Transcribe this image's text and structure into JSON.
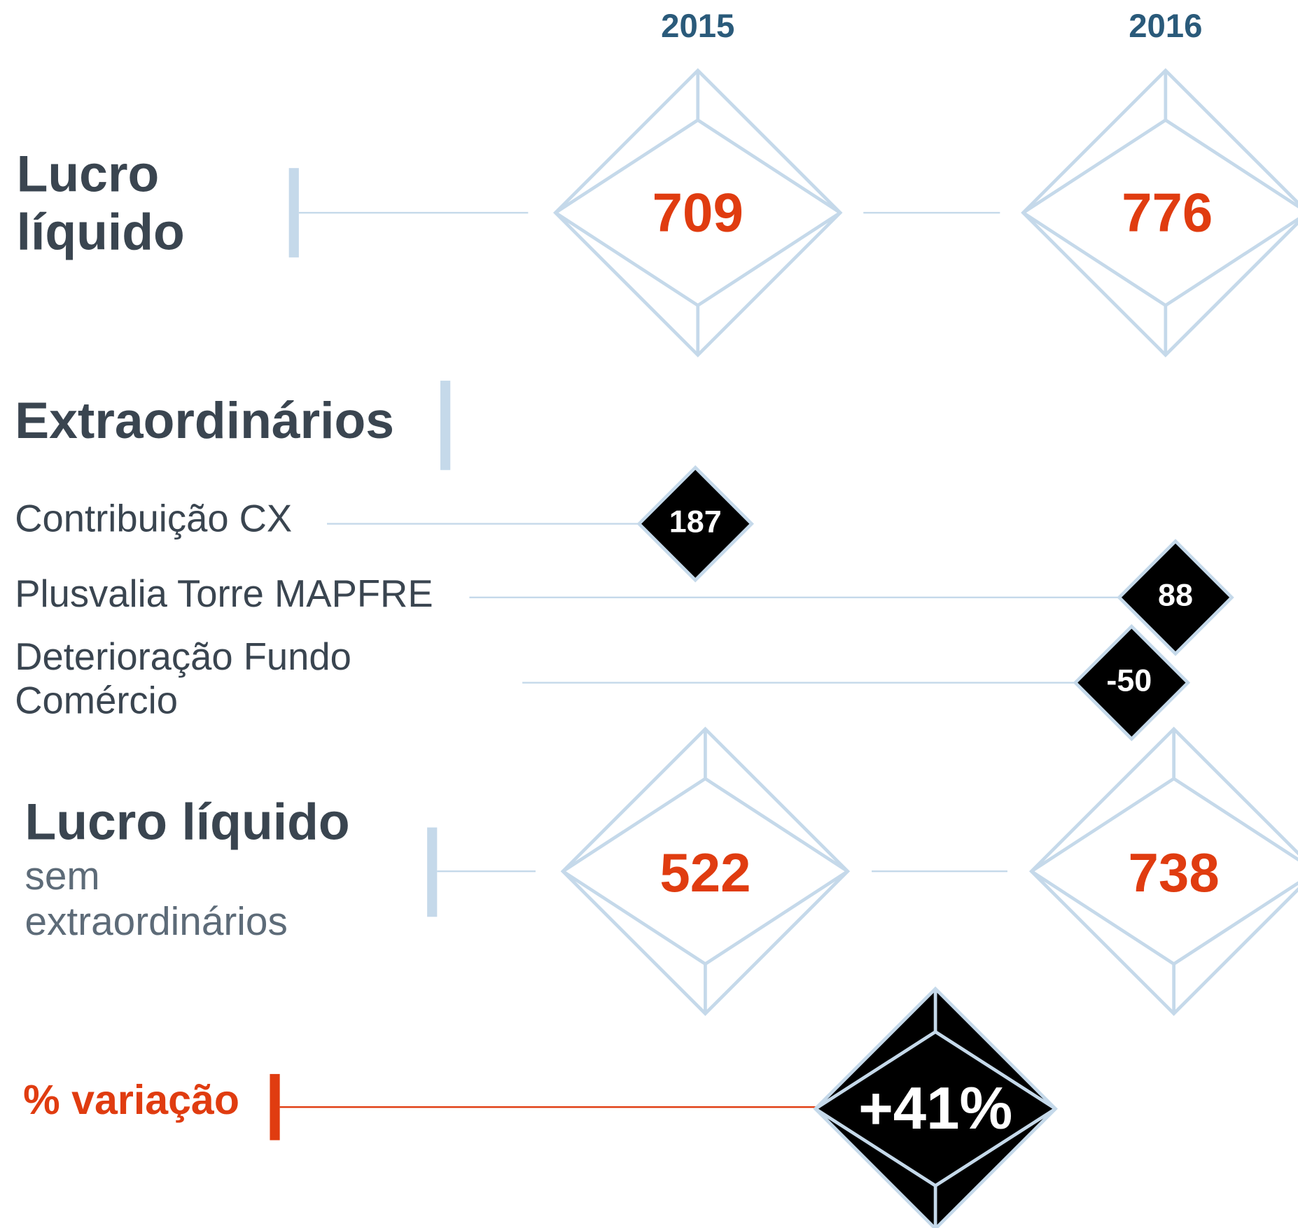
{
  "header": {
    "years": [
      "2015",
      "2016"
    ]
  },
  "net_profit": {
    "label": [
      "Lucro",
      "líquido"
    ],
    "values": [
      709,
      776
    ]
  },
  "extraordinary": {
    "title": "Extraordinários",
    "items": [
      {
        "label": [
          "Contribuição CX"
        ],
        "value": 187
      },
      {
        "label": [
          "Plusvalia Torre MAPFRE"
        ],
        "value": 88
      },
      {
        "label": [
          "Deterioração Fundo",
          "Comércio"
        ],
        "value": -50
      }
    ]
  },
  "adjusted_profit": {
    "title": "Lucro líquido",
    "subtitle": [
      "sem",
      "extraordinários"
    ],
    "values": [
      522,
      738
    ]
  },
  "variation": {
    "label": "% variação",
    "value": "+41%"
  }
}
